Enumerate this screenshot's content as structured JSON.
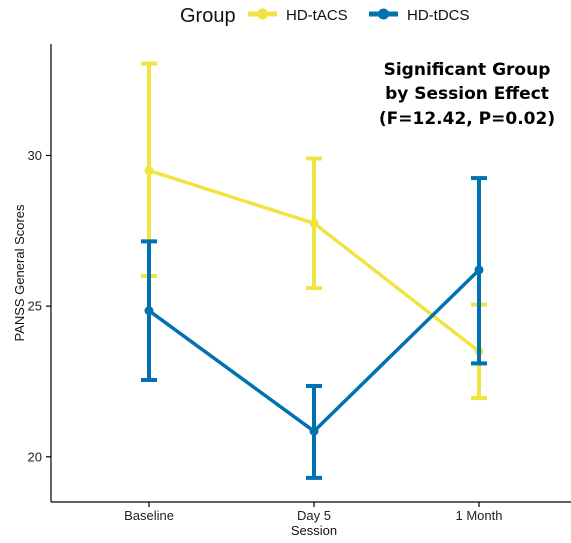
{
  "chart_data": {
    "type": "line",
    "categories": [
      "Baseline",
      "Day 5",
      "1 Month"
    ],
    "xlabel": "Session",
    "ylabel": "PANSS General Scores",
    "ylim": [
      18.5,
      33.7
    ],
    "yticks": [
      20,
      25,
      30
    ],
    "legend": {
      "title": "Group",
      "position": "top"
    },
    "grid": false,
    "annotation": [
      "Significant Group",
      "by Session Effect",
      "(F=12.42, P=0.02)"
    ],
    "series": [
      {
        "name": "HD-tACS",
        "color": "#F0E442",
        "values": [
          29.5,
          27.75,
          23.5
        ],
        "error_low": [
          26.0,
          25.6,
          21.95
        ],
        "error_high": [
          33.05,
          29.9,
          25.05
        ]
      },
      {
        "name": "HD-tDCS",
        "color": "#0072B2",
        "values": [
          24.85,
          20.85,
          26.2
        ],
        "error_low": [
          22.55,
          19.3,
          23.1
        ],
        "error_high": [
          27.15,
          22.35,
          29.25
        ]
      }
    ]
  }
}
